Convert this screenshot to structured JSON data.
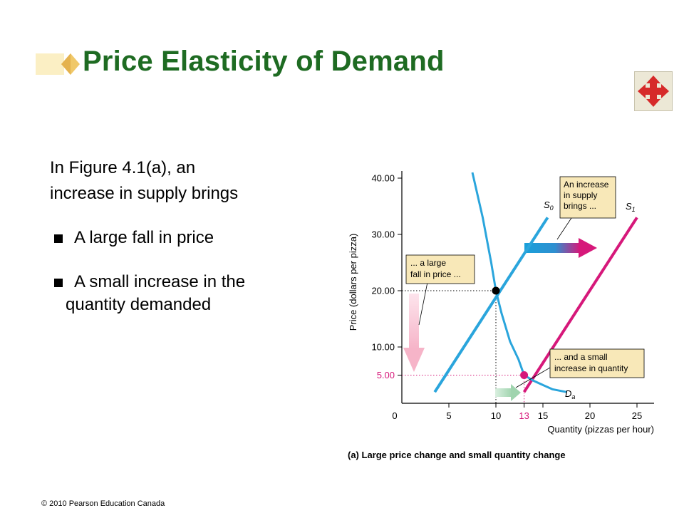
{
  "slide": {
    "title": "Price Elasticity of Demand",
    "intro_line1": "In Figure 4.1(a), an",
    "intro_line2": "increase in supply brings",
    "bullets": [
      "A large fall in price",
      "A small increase in the",
      "quantity demanded"
    ],
    "copyright": "© 2010 Pearson Education Canada",
    "nav_icon": "four-way-arrows-icon",
    "colors": {
      "title": "#1e6b22",
      "supply": "#2aa5dc",
      "supply_new": "#d6187a",
      "note_bg": "#f8e8b8"
    }
  },
  "chart_data": {
    "type": "line",
    "caption": "(a) Large price change and small quantity change",
    "xlabel": "Quantity (pizzas per hour)",
    "ylabel": "Price (dollars per pizza)",
    "xlim": [
      0,
      25
    ],
    "ylim": [
      0,
      40
    ],
    "x_ticks": [
      "0",
      "5",
      "10",
      "13",
      "15",
      "20",
      "25"
    ],
    "y_ticks": [
      "5.00",
      "10.00",
      "20.00",
      "30.00",
      "40.00"
    ],
    "series": [
      {
        "name": "S₀",
        "x": [
          3.5,
          15.5
        ],
        "y": [
          2,
          33
        ]
      },
      {
        "name": "S₁",
        "x": [
          13,
          25
        ],
        "y": [
          2,
          33
        ]
      },
      {
        "name": "Dₐ",
        "x": [
          7.5,
          8.6,
          9.5,
          10,
          10.6,
          11.5,
          12.4,
          13,
          14,
          16,
          17.5
        ],
        "y": [
          41,
          33,
          25,
          20,
          16,
          11,
          7.8,
          5,
          4,
          2.5,
          2
        ]
      }
    ],
    "points": [
      {
        "x": 10,
        "y": 20
      },
      {
        "x": 13,
        "y": 5
      }
    ],
    "annotations": [
      "An increase in supply brings ...",
      "... a large fall in price ...",
      "... and a small increase in quantity"
    ]
  }
}
